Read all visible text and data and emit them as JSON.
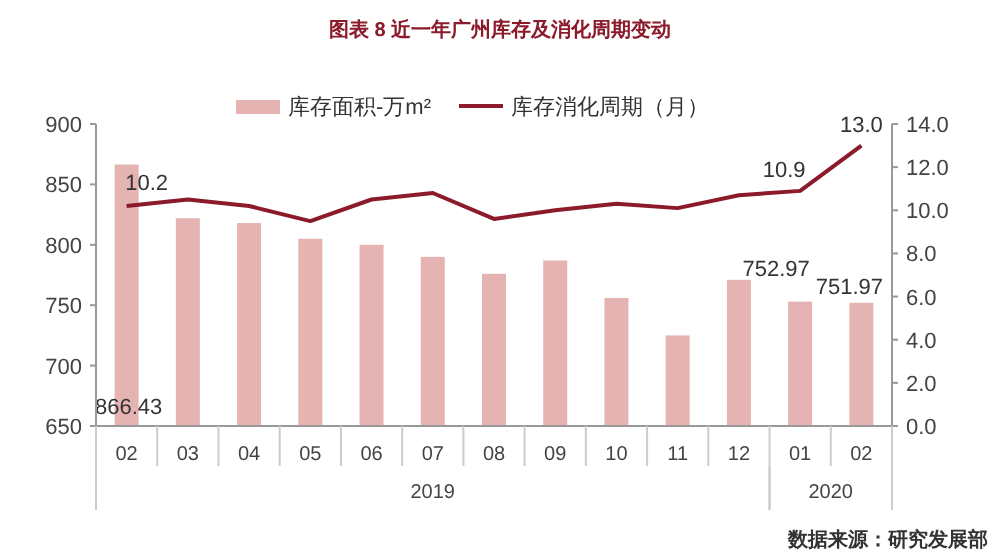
{
  "chart_data": {
    "type": "bar",
    "title": "图表 8 近一年广州库存及消化周期变动",
    "categories": [
      "02",
      "03",
      "04",
      "05",
      "06",
      "07",
      "08",
      "09",
      "10",
      "11",
      "12",
      "01",
      "02"
    ],
    "series": [
      {
        "name": "库存面积-万m²",
        "color": "#e6b3b3",
        "values": [
          866.43,
          822,
          818,
          805,
          800,
          790,
          776,
          787,
          756,
          725,
          771,
          752.97,
          751.97
        ],
        "value_labels": [
          "866.43",
          null,
          null,
          null,
          null,
          null,
          null,
          null,
          null,
          null,
          null,
          "752.97",
          "751.97"
        ]
      },
      {
        "name": "库存消化周期（月）",
        "type": "line",
        "axis": "y2",
        "color": "#8b1a2a",
        "values": [
          10.2,
          10.5,
          10.2,
          9.5,
          10.5,
          10.8,
          9.6,
          10.0,
          10.3,
          10.1,
          10.7,
          10.9,
          13.0
        ],
        "value_labels": [
          "10.2",
          null,
          null,
          null,
          null,
          null,
          null,
          null,
          null,
          null,
          null,
          "10.9",
          "13.0"
        ]
      }
    ],
    "ylim": [
      650,
      900
    ],
    "yticks": [
      650,
      700,
      750,
      800,
      850,
      900
    ],
    "y2lim": [
      0,
      14
    ],
    "y2ticks": [
      "0.0",
      "2.0",
      "4.0",
      "6.0",
      "8.0",
      "10.0",
      "12.0",
      "14.0"
    ],
    "legend": "top",
    "grid": false,
    "marker": "none",
    "annotations": [
      "2019",
      "2020",
      "数据来源：研究发展部"
    ]
  }
}
